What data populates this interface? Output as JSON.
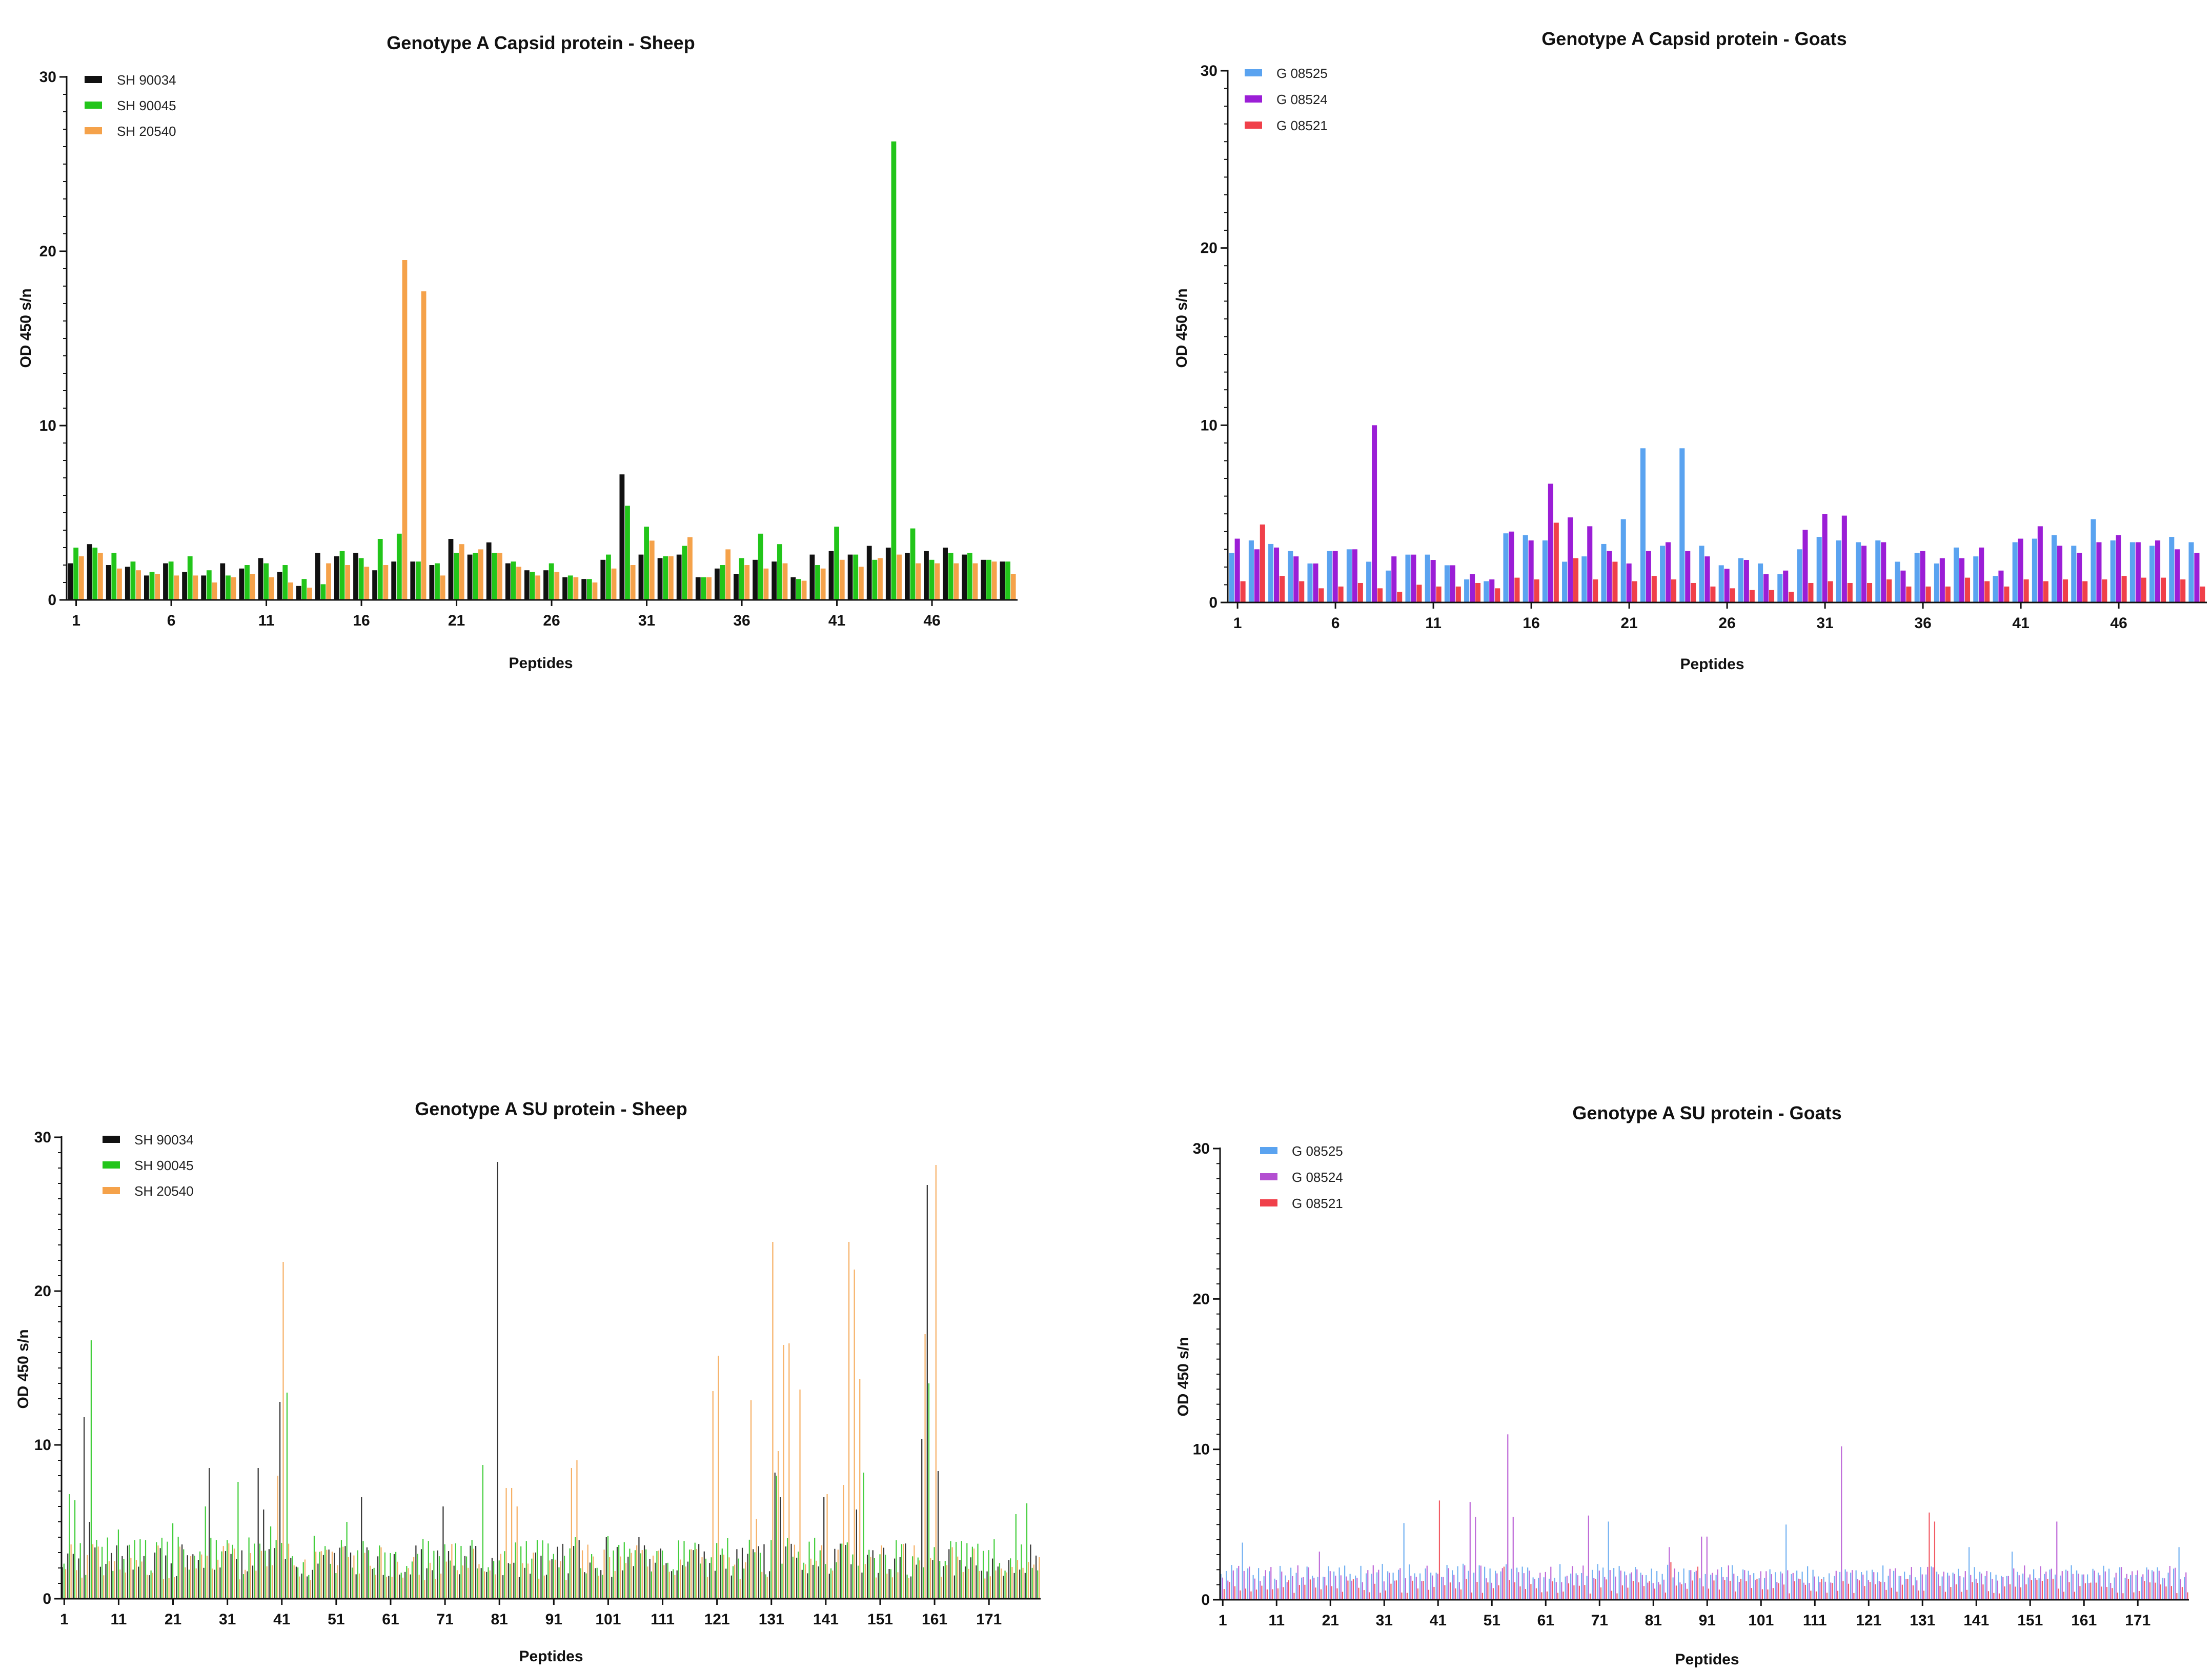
{
  "chart_data": [
    {
      "id": "capsid-sheep",
      "type": "bar",
      "title": "Genotype A Capsid protein - Sheep",
      "xlabel": "Peptides",
      "ylabel": "OD 450 s/n",
      "ylim": [
        0,
        30
      ],
      "yticks": [
        0,
        10,
        20,
        30
      ],
      "n_peptides": 50,
      "xtick_values": [
        1,
        6,
        11,
        16,
        21,
        26,
        31,
        36,
        41,
        46
      ],
      "legend_position": "top-left",
      "series": [
        {
          "name": "SH 90034",
          "color": "#111111",
          "values": [
            2.1,
            3.2,
            2.0,
            1.9,
            1.4,
            2.1,
            1.6,
            1.4,
            2.1,
            1.8,
            2.4,
            1.6,
            0.8,
            2.7,
            2.5,
            2.7,
            1.7,
            2.2,
            2.2,
            2.0,
            3.5,
            2.6,
            3.3,
            2.1,
            1.7,
            1.7,
            1.3,
            1.2,
            2.3,
            7.2,
            2.6,
            2.4,
            2.6,
            1.3,
            1.8,
            1.5,
            2.3,
            2.2,
            1.3,
            2.6,
            2.8,
            2.6,
            3.1,
            3.0,
            2.7,
            2.8,
            3.0,
            2.6,
            2.3,
            2.2
          ]
        },
        {
          "name": "SH 90045",
          "color": "#22c51a",
          "values": [
            3.0,
            3.0,
            2.7,
            2.2,
            1.6,
            2.2,
            2.5,
            1.7,
            1.4,
            2.0,
            2.1,
            2.0,
            1.2,
            0.9,
            2.8,
            2.4,
            3.5,
            3.8,
            2.2,
            2.1,
            2.7,
            2.7,
            2.7,
            2.2,
            1.6,
            2.1,
            1.4,
            1.2,
            2.6,
            5.4,
            4.2,
            2.5,
            3.1,
            1.3,
            2.0,
            2.4,
            3.8,
            3.2,
            1.2,
            2.0,
            4.2,
            2.6,
            2.3,
            26.3,
            4.1,
            2.3,
            2.7,
            2.7,
            2.3,
            2.2
          ]
        },
        {
          "name": "SH 20540",
          "color": "#f5a24a",
          "values": [
            2.5,
            2.7,
            1.8,
            1.7,
            1.5,
            1.4,
            1.4,
            1.0,
            1.3,
            1.5,
            1.3,
            1.0,
            0.7,
            2.1,
            2.0,
            1.9,
            2.0,
            19.5,
            17.7,
            1.4,
            3.2,
            2.9,
            2.7,
            1.9,
            1.4,
            1.6,
            1.3,
            1.0,
            1.8,
            2.0,
            3.4,
            2.5,
            3.6,
            1.3,
            2.9,
            2.0,
            1.8,
            2.1,
            1.1,
            1.8,
            2.3,
            1.9,
            2.4,
            2.6,
            2.1,
            2.1,
            2.1,
            2.1,
            2.2,
            1.5
          ]
        }
      ]
    },
    {
      "id": "capsid-goats",
      "type": "bar",
      "title": "Genotype A Capsid protein - Goats",
      "xlabel": "Peptides",
      "ylabel": "OD 450 s/n",
      "ylim": [
        0,
        30
      ],
      "yticks": [
        0,
        10,
        20,
        30
      ],
      "n_peptides": 50,
      "xtick_values": [
        1,
        6,
        11,
        16,
        21,
        26,
        31,
        36,
        41,
        46
      ],
      "legend_position": "top-left",
      "series": [
        {
          "name": "G 08525",
          "color": "#5aa3f0",
          "values": [
            2.8,
            3.5,
            3.3,
            2.9,
            2.2,
            2.9,
            3.0,
            2.3,
            1.8,
            2.7,
            2.7,
            2.1,
            1.3,
            1.2,
            3.9,
            3.8,
            3.5,
            2.3,
            2.6,
            3.3,
            4.7,
            8.7,
            3.2,
            8.7,
            3.2,
            2.1,
            2.5,
            2.2,
            1.6,
            3.0,
            3.7,
            3.5,
            3.4,
            3.5,
            2.3,
            2.8,
            2.2,
            3.1,
            2.6,
            1.5,
            3.4,
            3.6,
            3.8,
            3.2,
            4.7,
            3.5,
            3.4,
            3.2,
            3.7,
            3.4
          ]
        },
        {
          "name": "G 08524",
          "color": "#9b1ed6",
          "values": [
            3.6,
            3.0,
            3.1,
            2.6,
            2.2,
            2.9,
            3.0,
            10.0,
            2.6,
            2.7,
            2.4,
            2.1,
            1.6,
            1.3,
            4.0,
            3.5,
            6.7,
            4.8,
            4.3,
            2.9,
            2.2,
            2.9,
            3.4,
            2.9,
            2.6,
            1.9,
            2.4,
            1.6,
            1.8,
            4.1,
            5.0,
            4.9,
            3.2,
            3.4,
            1.8,
            2.9,
            2.5,
            2.5,
            3.1,
            1.8,
            3.6,
            4.3,
            3.2,
            2.8,
            3.4,
            3.8,
            3.4,
            3.5,
            3.0,
            2.8
          ]
        },
        {
          "name": "G 08521",
          "color": "#f0404a",
          "values": [
            1.2,
            4.4,
            1.5,
            1.2,
            0.8,
            0.9,
            1.1,
            0.8,
            0.6,
            1.0,
            0.9,
            0.9,
            1.1,
            0.8,
            1.4,
            1.3,
            4.5,
            2.5,
            1.3,
            2.3,
            1.2,
            1.5,
            1.3,
            1.1,
            0.9,
            0.8,
            0.7,
            0.7,
            0.6,
            1.1,
            1.2,
            1.1,
            1.1,
            1.3,
            0.9,
            0.9,
            0.9,
            1.4,
            1.2,
            0.9,
            1.3,
            1.2,
            1.3,
            1.2,
            1.3,
            1.5,
            1.4,
            1.4,
            1.3,
            0.9
          ]
        }
      ]
    },
    {
      "id": "su-sheep",
      "type": "bar",
      "title": "Genotype A SU protein - Sheep",
      "xlabel": "Peptides",
      "ylabel": "OD 450 s/n",
      "ylim": [
        0,
        30
      ],
      "yticks": [
        0,
        10,
        20,
        30
      ],
      "n_peptides": 180,
      "xtick_values": [
        1,
        11,
        21,
        31,
        41,
        51,
        61,
        71,
        81,
        91,
        101,
        111,
        121,
        131,
        141,
        151,
        161,
        171
      ],
      "legend_position": "top-left",
      "series": [
        {
          "name": "SH 90034",
          "color": "#111111",
          "base": 2.5,
          "amp": 1.1,
          "peaks": [
            [
              5,
              11.8
            ],
            [
              6,
              5.0
            ],
            [
              28,
              8.5
            ],
            [
              37,
              8.5
            ],
            [
              38,
              5.8
            ],
            [
              41,
              12.8
            ],
            [
              56,
              6.6
            ],
            [
              71,
              6.0
            ],
            [
              81,
              28.4
            ],
            [
              96,
              3.8
            ],
            [
              101,
              4.0
            ],
            [
              107,
              4.0
            ],
            [
              132,
              8.2
            ],
            [
              133,
              6.6
            ],
            [
              141,
              6.6
            ],
            [
              147,
              5.8
            ],
            [
              159,
              10.4
            ],
            [
              160,
              26.9
            ],
            [
              162,
              8.3
            ]
          ]
        },
        {
          "name": "SH 90045",
          "color": "#22c51a",
          "base": 2.8,
          "amp": 1.3,
          "peaks": [
            [
              2,
              6.8
            ],
            [
              3,
              6.4
            ],
            [
              6,
              16.8
            ],
            [
              11,
              4.5
            ],
            [
              21,
              4.9
            ],
            [
              27,
              6.0
            ],
            [
              33,
              7.6
            ],
            [
              39,
              4.7
            ],
            [
              42,
              13.4
            ],
            [
              53,
              5.0
            ],
            [
              78,
              8.7
            ],
            [
              95,
              4.0
            ],
            [
              132,
              8.0
            ],
            [
              148,
              8.2
            ],
            [
              160,
              14.0
            ],
            [
              176,
              5.5
            ],
            [
              178,
              6.2
            ]
          ]
        },
        {
          "name": "SH 20540",
          "color": "#f5a24a",
          "base": 2.4,
          "amp": 1.2,
          "peaks": [
            [
              40,
              8.0
            ],
            [
              41,
              21.9
            ],
            [
              82,
              7.2
            ],
            [
              83,
              7.2
            ],
            [
              84,
              6.0
            ],
            [
              94,
              8.5
            ],
            [
              95,
              9.0
            ],
            [
              120,
              13.5
            ],
            [
              121,
              15.8
            ],
            [
              127,
              12.9
            ],
            [
              128,
              5.2
            ],
            [
              131,
              23.2
            ],
            [
              132,
              9.6
            ],
            [
              133,
              16.5
            ],
            [
              134,
              16.6
            ],
            [
              136,
              13.6
            ],
            [
              141,
              6.8
            ],
            [
              144,
              7.4
            ],
            [
              145,
              23.2
            ],
            [
              146,
              21.4
            ],
            [
              147,
              14.3
            ],
            [
              159,
              17.2
            ],
            [
              161,
              28.2
            ]
          ]
        }
      ]
    },
    {
      "id": "su-goats",
      "type": "bar",
      "title": "Genotype A SU protein - Goats",
      "xlabel": "Peptides",
      "ylabel": "OD 450 s/n",
      "ylim": [
        0,
        30
      ],
      "yticks": [
        0,
        10,
        20,
        30
      ],
      "n_peptides": 180,
      "xtick_values": [
        1,
        11,
        21,
        31,
        41,
        51,
        61,
        71,
        81,
        91,
        101,
        111,
        121,
        131,
        141,
        151,
        161,
        171
      ],
      "legend_position": "top-left",
      "series": [
        {
          "name": "G 08525",
          "color": "#5aa3f0",
          "base": 1.9,
          "amp": 0.5,
          "peaks": [
            [
              5,
              3.8
            ],
            [
              35,
              5.1
            ],
            [
              73,
              5.2
            ],
            [
              106,
              5.0
            ],
            [
              140,
              3.5
            ],
            [
              148,
              3.2
            ],
            [
              179,
              3.5
            ]
          ]
        },
        {
          "name": "G 08524",
          "color": "#b34fd1",
          "base": 1.7,
          "amp": 0.6,
          "peaks": [
            [
              19,
              3.2
            ],
            [
              47,
              6.5
            ],
            [
              48,
              5.5
            ],
            [
              54,
              11.0
            ],
            [
              55,
              5.5
            ],
            [
              69,
              5.6
            ],
            [
              84,
              3.5
            ],
            [
              90,
              4.2
            ],
            [
              91,
              4.2
            ],
            [
              116,
              10.2
            ],
            [
              156,
              5.2
            ]
          ]
        },
        {
          "name": "G 08521",
          "color": "#f0404a",
          "base": 0.9,
          "amp": 0.5,
          "peaks": [
            [
              41,
              6.6
            ],
            [
              53,
              2.2
            ],
            [
              84,
              2.5
            ],
            [
              89,
              2.2
            ],
            [
              132,
              5.8
            ],
            [
              133,
              5.2
            ]
          ]
        }
      ]
    }
  ]
}
